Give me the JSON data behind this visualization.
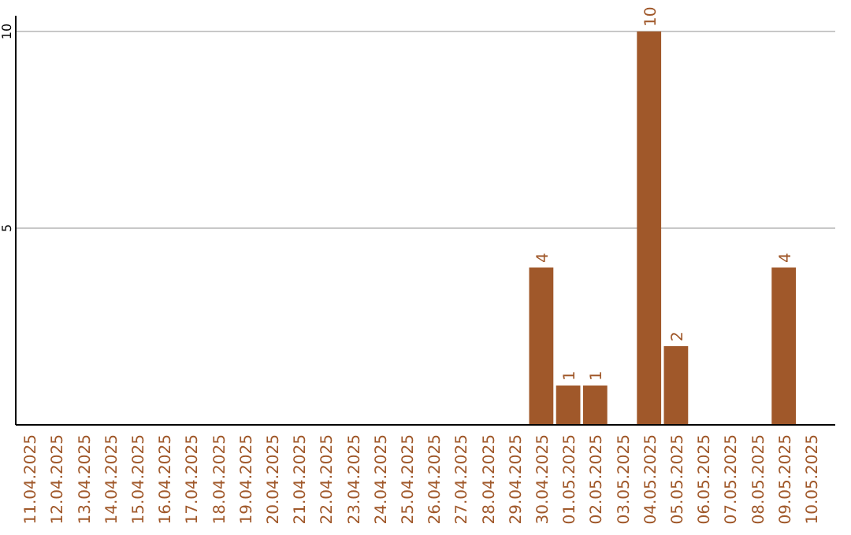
{
  "chart_data": {
    "type": "bar",
    "categories": [
      "11.04.2025",
      "12.04.2025",
      "13.04.2025",
      "14.04.2025",
      "15.04.2025",
      "16.04.2025",
      "17.04.2025",
      "18.04.2025",
      "19.04.2025",
      "20.04.2025",
      "21.04.2025",
      "22.04.2025",
      "23.04.2025",
      "24.04.2025",
      "25.04.2025",
      "26.04.2025",
      "27.04.2025",
      "28.04.2025",
      "29.04.2025",
      "30.04.2025",
      "01.05.2025",
      "02.05.2025",
      "03.05.2025",
      "04.05.2025",
      "05.05.2025",
      "06.05.2025",
      "07.05.2025",
      "08.05.2025",
      "09.05.2025",
      "10.05.2025"
    ],
    "values": [
      0,
      0,
      0,
      0,
      0,
      0,
      0,
      0,
      0,
      0,
      0,
      0,
      0,
      0,
      0,
      0,
      0,
      0,
      0,
      4,
      1,
      1,
      0,
      10,
      2,
      0,
      0,
      0,
      4,
      0
    ],
    "value_labels": [
      null,
      null,
      null,
      null,
      null,
      null,
      null,
      null,
      null,
      null,
      null,
      null,
      null,
      null,
      null,
      null,
      null,
      null,
      null,
      "4",
      "1",
      "1",
      null,
      "10",
      "2",
      null,
      null,
      null,
      "4",
      null
    ],
    "color": "#a0582a",
    "ylim": [
      0,
      10
    ],
    "yticks": [
      5,
      10
    ],
    "grid": "y"
  }
}
